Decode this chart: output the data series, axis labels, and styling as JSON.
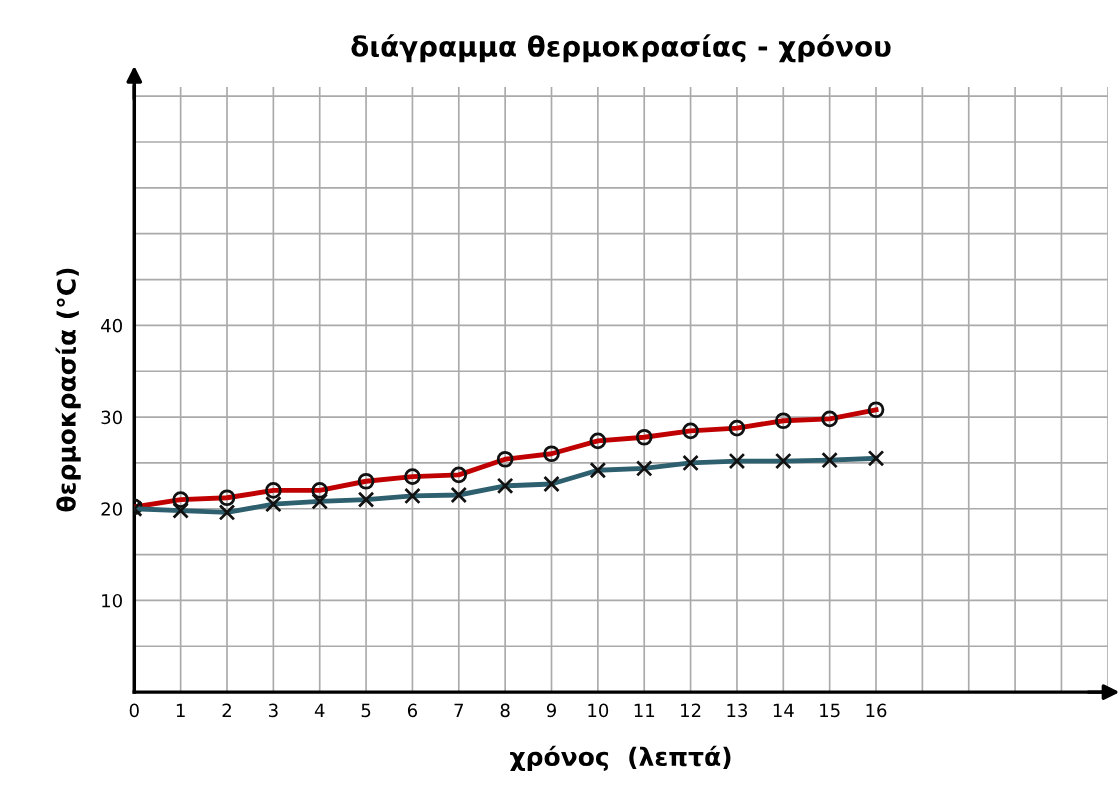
{
  "chart_data": {
    "type": "line",
    "title": "διάγραμμα θερμοκρασίας - χρόνου",
    "xlabel": "χρόνος  (λεπτά)",
    "ylabel": "θερμοκρασία (°C)",
    "x": [
      0,
      1,
      2,
      3,
      4,
      5,
      6,
      7,
      8,
      9,
      10,
      11,
      12,
      13,
      14,
      15,
      16
    ],
    "series": [
      {
        "color": "#c00000",
        "marker": "circle",
        "values": [
          20.2,
          21,
          21.2,
          22,
          22,
          23,
          23.5,
          23.7,
          25.4,
          26,
          27.4,
          27.8,
          28.5,
          28.8,
          29.6,
          29.8,
          30.8
        ]
      },
      {
        "color": "#2e5f6e",
        "marker": "cross",
        "values": [
          20,
          19.8,
          19.6,
          20.5,
          20.8,
          21,
          21.4,
          21.5,
          22.5,
          22.7,
          24.2,
          24.4,
          25,
          25.2,
          25.2,
          25.3,
          25.5
        ]
      }
    ],
    "xlim": [
      0,
      21
    ],
    "ylim": [
      0,
      66
    ],
    "xticks": [
      0,
      1,
      2,
      3,
      4,
      5,
      6,
      7,
      8,
      9,
      10,
      11,
      12,
      13,
      14,
      15,
      16,
      {
        "value": 17,
        "label": null
      },
      {
        "value": 18,
        "label": null
      },
      {
        "value": 19,
        "label": null
      },
      {
        "value": 20,
        "label": null
      },
      {
        "value": 21,
        "label": null
      }
    ],
    "yticks": [
      {
        "value": 5,
        "label": null
      },
      10,
      {
        "value": 15,
        "label": null
      },
      20,
      {
        "value": 25,
        "label": null
      },
      30,
      {
        "value": 35,
        "label": null
      },
      40,
      {
        "value": 45,
        "label": null
      },
      {
        "value": 50,
        "label": null
      },
      {
        "value": 55,
        "label": null
      },
      {
        "value": 60,
        "label": null
      },
      {
        "value": 65,
        "label": null
      }
    ],
    "grid": true,
    "legend": false
  }
}
